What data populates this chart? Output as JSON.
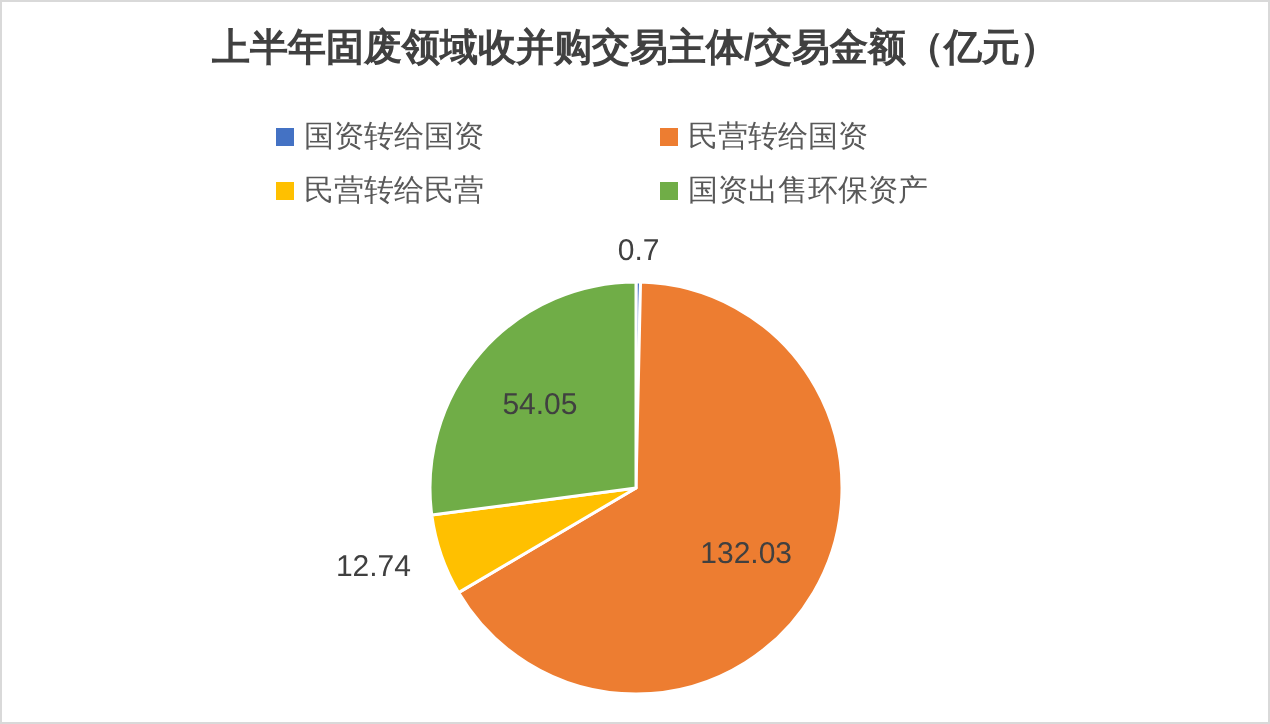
{
  "chart_data": {
    "type": "pie",
    "title": "上半年固废领域收并购交易主体/交易金额（亿元）",
    "categories": [
      "国资转给国资",
      "民营转给国资",
      "民营转给民营",
      "国资出售环保资产"
    ],
    "values": [
      0.7,
      132.03,
      12.74,
      54.05
    ],
    "colors": [
      "#4472c4",
      "#ed7d31",
      "#ffc000",
      "#70ad47"
    ],
    "data_labels": true,
    "legend": "top"
  }
}
